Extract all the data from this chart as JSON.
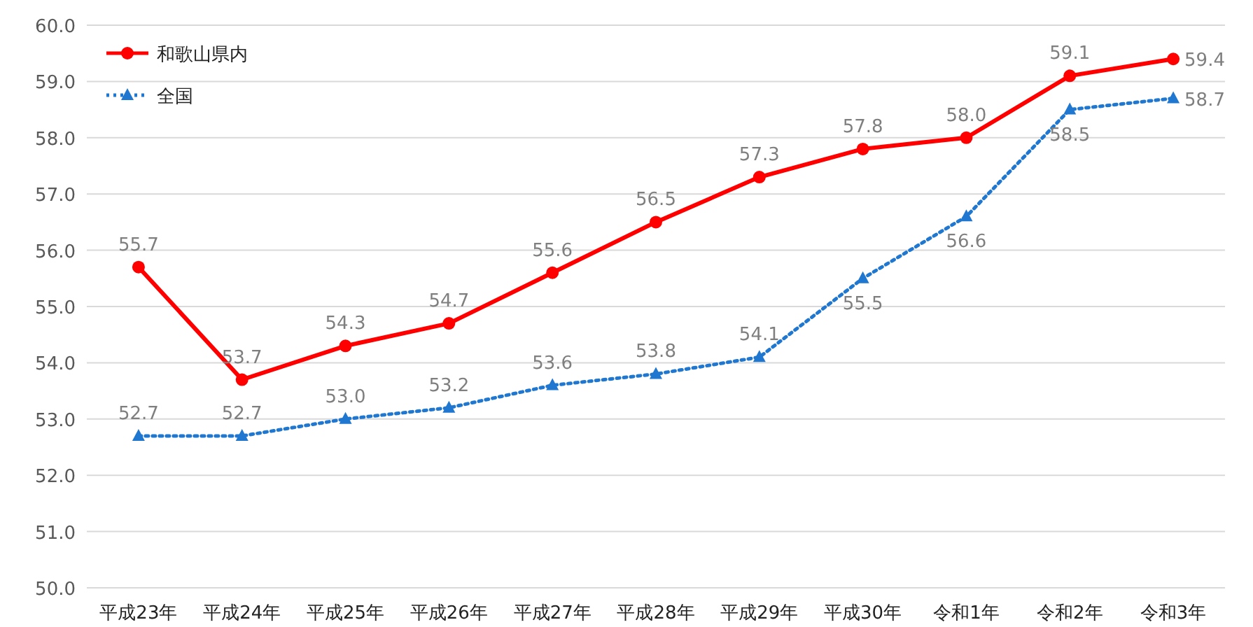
{
  "chart_data": {
    "type": "line",
    "categories": [
      "平成23年",
      "平成24年",
      "平成25年",
      "平成26年",
      "平成27年",
      "平成28年",
      "平成29年",
      "平成30年",
      "令和1年",
      "令和2年",
      "令和3年"
    ],
    "series": [
      {
        "name": "和歌山県内",
        "color": "#ff0000",
        "marker": "circle",
        "line_style": "solid",
        "values": [
          55.7,
          53.7,
          54.3,
          54.7,
          55.6,
          56.5,
          57.3,
          57.8,
          58.0,
          59.1,
          59.4
        ],
        "value_labels": [
          "55.7",
          "53.7",
          "54.3",
          "54.7",
          "55.6",
          "56.5",
          "57.3",
          "57.8",
          "58.0",
          "59.1",
          "59.4"
        ]
      },
      {
        "name": "全国",
        "color": "#1f77d0",
        "marker": "triangle",
        "line_style": "dotted",
        "values": [
          52.7,
          52.7,
          53.0,
          53.2,
          53.6,
          53.8,
          54.1,
          55.5,
          56.6,
          58.5,
          58.7
        ],
        "value_labels": [
          "52.7",
          "52.7",
          "53.0",
          "53.2",
          "53.6",
          "53.8",
          "54.1",
          "55.5",
          "56.6",
          "58.5",
          "58.7"
        ]
      }
    ],
    "ylim": [
      50,
      60
    ],
    "yticks": [
      {
        "value": 50,
        "label": "50.0"
      },
      {
        "value": 51,
        "label": "51.0"
      },
      {
        "value": 52,
        "label": "52.0"
      },
      {
        "value": 53,
        "label": "53.0"
      },
      {
        "value": 54,
        "label": "54.0"
      },
      {
        "value": 55,
        "label": "55.0"
      },
      {
        "value": 56,
        "label": "56.0"
      },
      {
        "value": 57,
        "label": "57.0"
      },
      {
        "value": 58,
        "label": "58.0"
      },
      {
        "value": 59,
        "label": "59.0"
      },
      {
        "value": 60,
        "label": "60.0"
      }
    ],
    "grid": "y",
    "legend": "top left"
  }
}
